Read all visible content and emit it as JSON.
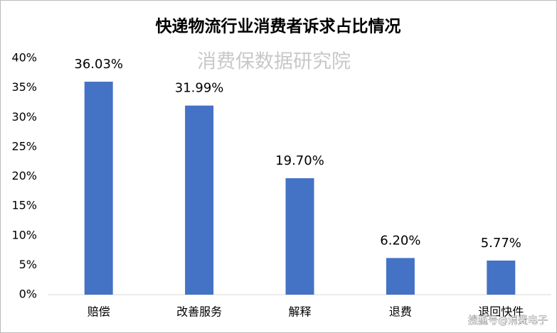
{
  "chart_data": {
    "type": "bar",
    "title": "快递物流行业消费者诉求占比情况",
    "watermark": "消费保数据研究院",
    "source": "搜狐号@消费电子",
    "categories": [
      "赔偿",
      "改善服务",
      "解释",
      "退费",
      "退回快件"
    ],
    "values": [
      36.03,
      31.99,
      19.7,
      6.2,
      5.77
    ],
    "value_labels": [
      "36.03%",
      "31.99%",
      "19.70%",
      "6.20%",
      "5.77%"
    ],
    "color": "#4472c4",
    "ylim": [
      0,
      40
    ],
    "yticks": [
      {
        "value": 0,
        "label": "0%"
      },
      {
        "value": 5,
        "label": "5%"
      },
      {
        "value": 10,
        "label": "10%"
      },
      {
        "value": 15,
        "label": "15%"
      },
      {
        "value": 20,
        "label": "20%"
      },
      {
        "value": 25,
        "label": "25%"
      },
      {
        "value": 30,
        "label": "30%"
      },
      {
        "value": 35,
        "label": "35%"
      },
      {
        "value": 40,
        "label": "40%"
      }
    ],
    "grid": false
  }
}
